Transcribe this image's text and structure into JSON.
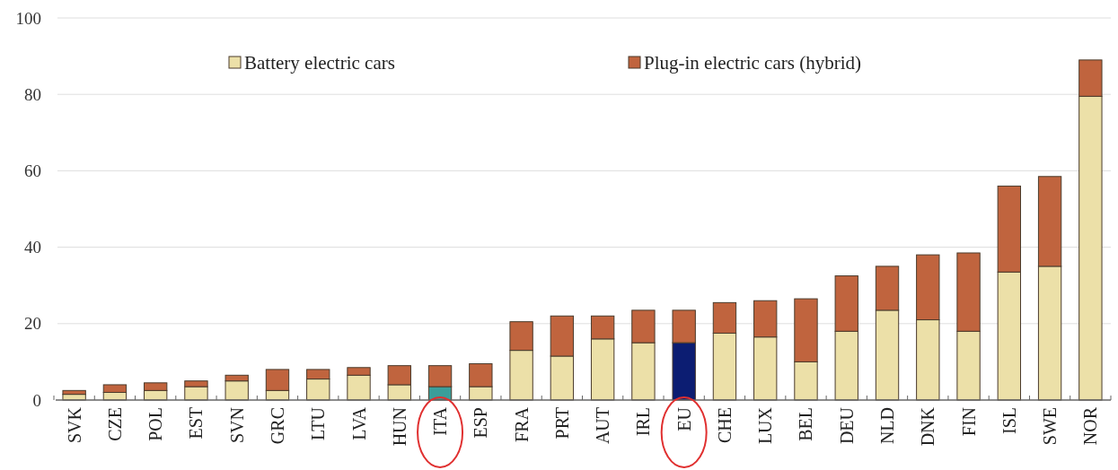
{
  "chart_data": {
    "type": "bar",
    "stacked": true,
    "categories": [
      "SVK",
      "CZE",
      "POL",
      "EST",
      "SVN",
      "GRC",
      "LTU",
      "LVA",
      "HUN",
      "ITA",
      "ESP",
      "FRA",
      "PRT",
      "AUT",
      "IRL",
      "EU",
      "CHE",
      "LUX",
      "BEL",
      "DEU",
      "NLD",
      "DNK",
      "FIN",
      "ISL",
      "SWE",
      "NOR"
    ],
    "series": [
      {
        "name": "Battery electric cars",
        "color": "#ece0a8",
        "colors": [
          "#ece0a8",
          "#ece0a8",
          "#ece0a8",
          "#ece0a8",
          "#ece0a8",
          "#ece0a8",
          "#ece0a8",
          "#ece0a8",
          "#ece0a8",
          "#3a9e9a",
          "#ece0a8",
          "#ece0a8",
          "#ece0a8",
          "#ece0a8",
          "#ece0a8",
          "#0c1d72",
          "#ece0a8",
          "#ece0a8",
          "#ece0a8",
          "#ece0a8",
          "#ece0a8",
          "#ece0a8",
          "#ece0a8",
          "#ece0a8",
          "#ece0a8",
          "#ece0a8"
        ],
        "values": [
          1.5,
          2,
          2.5,
          3.5,
          5,
          2.5,
          5.5,
          6.5,
          4,
          3.5,
          3.5,
          13,
          11.5,
          16,
          15,
          15,
          17.5,
          16.5,
          10,
          18,
          23.5,
          21,
          18,
          33.5,
          35,
          79.5
        ]
      },
      {
        "name": "Plug-in electric cars (hybrid)",
        "color": "#c0643e",
        "values": [
          1,
          2,
          2,
          1.5,
          1.5,
          5.5,
          2.5,
          2,
          5,
          5.5,
          6,
          7.5,
          10.5,
          6,
          8.5,
          8.5,
          8,
          9.5,
          16.5,
          14.5,
          11.5,
          17,
          20.5,
          22.5,
          23.5,
          9.5
        ]
      }
    ],
    "ylim": [
      0,
      100
    ],
    "yticks": [
      0,
      20,
      40,
      60,
      80,
      100
    ],
    "grid": "y",
    "legend": "top"
  }
}
